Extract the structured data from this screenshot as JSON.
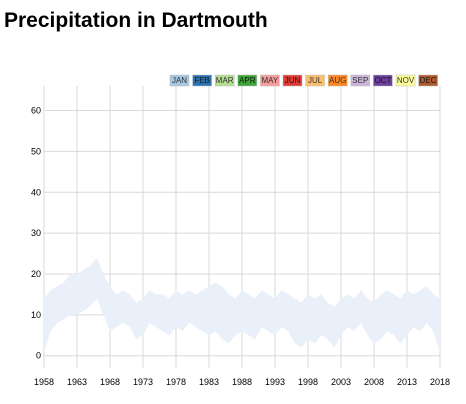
{
  "title": "Precipitation in Dartmouth",
  "chart_data": {
    "type": "area",
    "title": "Precipitation in Dartmouth",
    "xlabel": "",
    "ylabel": "",
    "xlim": [
      1958,
      2018
    ],
    "ylim": [
      -3,
      66
    ],
    "x_ticks": [
      1958,
      1963,
      1968,
      1973,
      1978,
      1983,
      1988,
      1993,
      1998,
      2003,
      2008,
      2013,
      2018
    ],
    "y_ticks": [
      0,
      10,
      20,
      30,
      40,
      50,
      60
    ],
    "grid": true,
    "legend_position": "top-right",
    "legend": [
      {
        "label": "JAN",
        "color": "#a6c8e3"
      },
      {
        "label": "FEB",
        "color": "#2b73b0"
      },
      {
        "label": "MAR",
        "color": "#b4df90"
      },
      {
        "label": "APR",
        "color": "#3fa438"
      },
      {
        "label": "MAY",
        "color": "#f89b9b"
      },
      {
        "label": "JUN",
        "color": "#de3a35"
      },
      {
        "label": "JUL",
        "color": "#fbc06e"
      },
      {
        "label": "AUG",
        "color": "#ff8720"
      },
      {
        "label": "SEP",
        "color": "#cbb5d8"
      },
      {
        "label": "OCT",
        "color": "#6b3f9c"
      },
      {
        "label": "NOV",
        "color": "#ffff9d"
      },
      {
        "label": "DEC",
        "color": "#b05a2d"
      }
    ],
    "series": [
      {
        "fill_color": "#e9f0f9",
        "x": [
          1958,
          1959,
          1960,
          1961,
          1962,
          1963,
          1964,
          1965,
          1966,
          1967,
          1968,
          1969,
          1970,
          1971,
          1972,
          1973,
          1974,
          1975,
          1976,
          1977,
          1978,
          1979,
          1980,
          1981,
          1982,
          1983,
          1984,
          1985,
          1986,
          1987,
          1988,
          1989,
          1990,
          1991,
          1992,
          1993,
          1994,
          1995,
          1996,
          1997,
          1998,
          1999,
          2000,
          2001,
          2002,
          2003,
          2004,
          2005,
          2006,
          2007,
          2008,
          2009,
          2010,
          2011,
          2012,
          2013,
          2014,
          2015,
          2016,
          2017,
          2018
        ],
        "upper": [
          14,
          16,
          17,
          18,
          20,
          20,
          21,
          22,
          24,
          20,
          17,
          15,
          16,
          15,
          13,
          14,
          16,
          15,
          15,
          14,
          16,
          15,
          16,
          15,
          16,
          17,
          18,
          17,
          15,
          14,
          16,
          15,
          14,
          16,
          15,
          14,
          16,
          15,
          14,
          13,
          15,
          14,
          15,
          13,
          12,
          14,
          15,
          14,
          16,
          14,
          13,
          15,
          16,
          15,
          14,
          16,
          15,
          16,
          17,
          15,
          14
        ],
        "lower": [
          1,
          6,
          8,
          9,
          10,
          10,
          11,
          12,
          14,
          10,
          6,
          7,
          8,
          7,
          4,
          5,
          8,
          7,
          6,
          5,
          7,
          6,
          8,
          7,
          6,
          5,
          6,
          4,
          3,
          5,
          6,
          5,
          4,
          7,
          6,
          5,
          7,
          6,
          3,
          2,
          4,
          3,
          5,
          4,
          2,
          5,
          7,
          6,
          8,
          5,
          3,
          4,
          6,
          5,
          3,
          5,
          7,
          6,
          8,
          6,
          1
        ]
      }
    ]
  }
}
